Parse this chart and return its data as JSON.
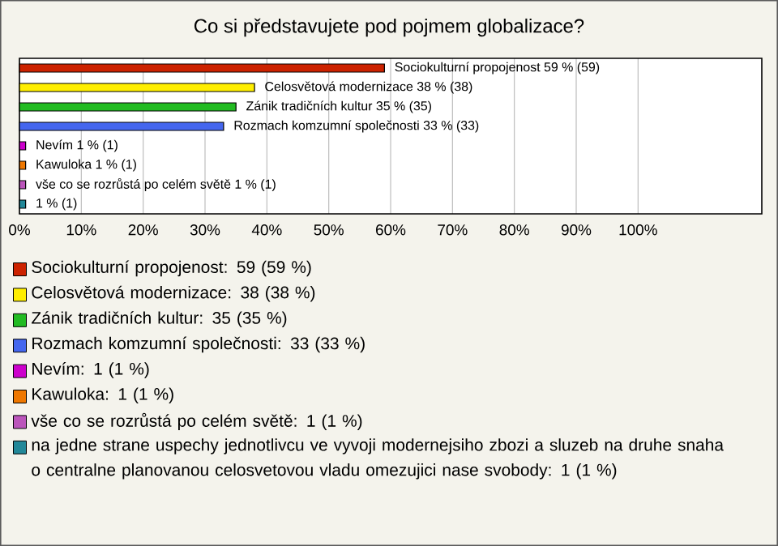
{
  "chart_data": {
    "type": "bar",
    "orientation": "horizontal",
    "title": "Co si představujete pod pojmem globalizace?",
    "categories": [
      null,
      null,
      null,
      null,
      null,
      null,
      null,
      null
    ],
    "values": [
      59,
      38,
      35,
      33,
      1,
      1,
      1,
      1
    ],
    "value_labels": [
      "Sociokulturní propojenost 59 % (59)",
      "Celosvětová modernizace 38 % (38)",
      "Zánik tradičních kultur 35 % (35)",
      "Rozmach komzumní společnosti 33 % (33)",
      "Nevím 1 % (1)",
      "Kawuloka 1 % (1)",
      "vše co se rozrůstá po celém světě 1 % (1)",
      "1 % (1)"
    ],
    "colors": [
      "#cc2200",
      "#ffee00",
      "#22bb22",
      "#4466ee",
      "#cc00cc",
      "#ee7700",
      "#bb55bb",
      "#228899"
    ],
    "xlim": [
      0,
      120
    ],
    "xticks": [
      {
        "value": 0,
        "label": "0%"
      },
      {
        "value": 10,
        "label": "10%"
      },
      {
        "value": 20,
        "label": "20%"
      },
      {
        "value": 30,
        "label": "30%"
      },
      {
        "value": 40,
        "label": "40%"
      },
      {
        "value": 50,
        "label": "50%"
      },
      {
        "value": 60,
        "label": "60%"
      },
      {
        "value": 70,
        "label": "70%"
      },
      {
        "value": 80,
        "label": "80%"
      },
      {
        "value": 90,
        "label": "90%"
      },
      {
        "value": 100,
        "label": "100%"
      }
    ],
    "grid": "x",
    "tick_labels": "x",
    "annotations": [
      "Sociokulturní propojenost: 59 (59 %)",
      "Celosvětová modernizace: 38 (38 %)",
      "Zánik tradičních kultur: 35 (35 %)",
      "Rozmach komzumní společnosti: 33 (33 %)",
      "Nevím: 1 (1 %)",
      "Kawuloka: 1 (1 %)",
      "vše co se rozrůstá po celém světě: 1 (1 %)",
      "na jedne strane uspechy jednotlivcu ve vyvoji modernejsiho zbozi a sluzeb na druhe snaha o centralne planovanou celosvetovou vladu omezujici nase svobody: 1 (1 %)"
    ]
  }
}
